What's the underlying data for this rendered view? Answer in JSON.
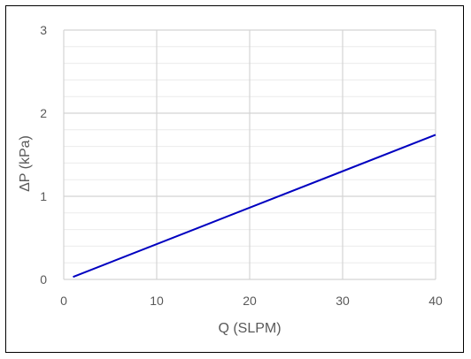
{
  "chart_data": {
    "type": "line",
    "xlabel": "Q (SLPM)",
    "ylabel": "ΔP (kPa)",
    "xlim": [
      0,
      40
    ],
    "ylim": [
      0,
      3
    ],
    "x_ticks": [
      "0",
      "10",
      "20",
      "30",
      "40"
    ],
    "y_ticks": [
      "0",
      "1",
      "2",
      "3"
    ],
    "grid": true,
    "minor_y_grid_step": 0.2,
    "series": [
      {
        "color": "#0000c0",
        "x": [
          1,
          40
        ],
        "y": [
          0.03,
          1.74
        ]
      }
    ]
  }
}
